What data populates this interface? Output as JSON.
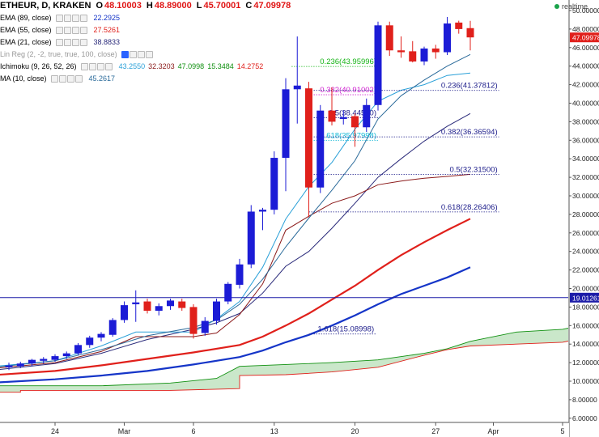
{
  "legend": {
    "title": "ETHEUR, D, KRAKEN",
    "ohlc": {
      "o_label": "O",
      "o": "48.10003",
      "h_label": "H",
      "h": "48.89000",
      "l_label": "L",
      "l": "45.70001",
      "c_label": "C",
      "c": "47.09978"
    },
    "indicators": [
      {
        "label": "EMA (89, close)",
        "value": "22.2925",
        "color": "#1535c8"
      },
      {
        "label": "EMA (55, close)",
        "value": "27.5261",
        "color": "#e0201b"
      },
      {
        "label": "EMA (21, close)",
        "value": "38.8833",
        "color": "#2a2a7a"
      },
      {
        "label": "Lin Reg (2, -2, true, true, 100, close)",
        "value": "",
        "color": "#888888"
      },
      {
        "label": "Ichimoku (9, 26, 52, 26)",
        "values": [
          "43.2550",
          "32.3203",
          "47.0998",
          "15.3484",
          "14.2752"
        ],
        "colors": [
          "#2aa0d8",
          "#8b1a1a",
          "#109010",
          "#109010",
          "#e0201b"
        ]
      },
      {
        "label": "MA (10, close)",
        "value": "45.2617",
        "color": "#2a6a9a"
      }
    ]
  },
  "realtime_label": "realtime",
  "chart_data": {
    "type": "candlestick",
    "symbol": "ETHEUR",
    "interval": "D",
    "exchange": "KRAKEN",
    "x_tick_labels": [
      {
        "index": 4,
        "label": "24"
      },
      {
        "index": 10,
        "label": "Mar"
      },
      {
        "index": 16,
        "label": "6"
      },
      {
        "index": 23,
        "label": "13"
      },
      {
        "index": 30,
        "label": "20"
      },
      {
        "index": 37,
        "label": "27"
      },
      {
        "index": 42,
        "label": "Apr"
      },
      {
        "index": 48,
        "label": "5"
      }
    ],
    "ylim": [
      6,
      51
    ],
    "y_ticks": [
      6,
      8,
      10,
      12,
      14,
      16,
      18,
      20,
      22,
      24,
      26,
      28,
      30,
      32,
      34,
      36,
      38,
      40,
      42,
      44,
      46,
      48,
      50
    ],
    "y_tick_labels": [
      "6.00000",
      "8.00000",
      "10.00000",
      "12.00000",
      "14.00000",
      "16.00000",
      "18.00000",
      "20.00000",
      "22.00000",
      "24.00000",
      "26.00000",
      "28.00000",
      "30.00000",
      "32.00000",
      "34.00000",
      "36.00000",
      "38.00000",
      "40.00000",
      "42.00000",
      "44.00000",
      "46.00000",
      "48.00000",
      "50.00000"
    ],
    "last_price": {
      "value": 47.09978,
      "label": "47.09978",
      "color": "#e0201b"
    },
    "horizontal_line": {
      "value": 19.0126,
      "label": "19.01261",
      "color": "#1c1ca8"
    },
    "up_color": "#1c1cd6",
    "down_color": "#e0201b",
    "candles": [
      {
        "i": 0,
        "o": 11.5,
        "h": 12.0,
        "l": 11.2,
        "c": 11.7
      },
      {
        "i": 1,
        "o": 11.6,
        "h": 12.1,
        "l": 11.4,
        "c": 11.9
      },
      {
        "i": 2,
        "o": 11.9,
        "h": 12.4,
        "l": 11.6,
        "c": 12.3
      },
      {
        "i": 3,
        "o": 12.2,
        "h": 12.6,
        "l": 11.9,
        "c": 12.4
      },
      {
        "i": 4,
        "o": 12.3,
        "h": 12.9,
        "l": 12.1,
        "c": 12.7
      },
      {
        "i": 5,
        "o": 12.7,
        "h": 13.2,
        "l": 12.4,
        "c": 13.0
      },
      {
        "i": 6,
        "o": 13.0,
        "h": 14.1,
        "l": 12.8,
        "c": 13.9
      },
      {
        "i": 7,
        "o": 13.9,
        "h": 14.9,
        "l": 13.6,
        "c": 14.7
      },
      {
        "i": 8,
        "o": 14.7,
        "h": 15.3,
        "l": 14.3,
        "c": 15.1
      },
      {
        "i": 9,
        "o": 15.0,
        "h": 16.8,
        "l": 14.8,
        "c": 16.6
      },
      {
        "i": 10,
        "o": 16.6,
        "h": 18.6,
        "l": 16.3,
        "c": 18.2
      },
      {
        "i": 11,
        "o": 18.3,
        "h": 19.8,
        "l": 16.4,
        "c": 18.5
      },
      {
        "i": 12,
        "o": 18.6,
        "h": 18.9,
        "l": 17.3,
        "c": 17.6
      },
      {
        "i": 13,
        "o": 17.6,
        "h": 18.4,
        "l": 17.1,
        "c": 18.1
      },
      {
        "i": 14,
        "o": 18.1,
        "h": 18.9,
        "l": 17.7,
        "c": 18.7
      },
      {
        "i": 15,
        "o": 18.6,
        "h": 18.9,
        "l": 17.6,
        "c": 17.9
      },
      {
        "i": 16,
        "o": 18.0,
        "h": 18.3,
        "l": 14.6,
        "c": 15.1
      },
      {
        "i": 17,
        "o": 15.2,
        "h": 16.9,
        "l": 14.9,
        "c": 16.5
      },
      {
        "i": 18,
        "o": 16.5,
        "h": 18.9,
        "l": 16.1,
        "c": 18.6
      },
      {
        "i": 19,
        "o": 18.6,
        "h": 20.7,
        "l": 18.3,
        "c": 20.5
      },
      {
        "i": 20,
        "o": 20.4,
        "h": 23.2,
        "l": 20.0,
        "c": 22.6
      },
      {
        "i": 21,
        "o": 22.6,
        "h": 29.0,
        "l": 22.2,
        "c": 28.3
      },
      {
        "i": 22,
        "o": 28.3,
        "h": 28.7,
        "l": 26.3,
        "c": 28.5
      },
      {
        "i": 23,
        "o": 28.5,
        "h": 34.8,
        "l": 28.0,
        "c": 34.1
      },
      {
        "i": 24,
        "o": 34.1,
        "h": 42.7,
        "l": 30.5,
        "c": 41.5
      },
      {
        "i": 25,
        "o": 41.5,
        "h": 47.2,
        "l": 37.8,
        "c": 41.9
      },
      {
        "i": 26,
        "o": 41.6,
        "h": 42.3,
        "l": 27.7,
        "c": 30.9
      },
      {
        "i": 27,
        "o": 30.9,
        "h": 39.8,
        "l": 30.3,
        "c": 39.2
      },
      {
        "i": 28,
        "o": 39.2,
        "h": 41.7,
        "l": 37.6,
        "c": 38.0
      },
      {
        "i": 29,
        "o": 38.3,
        "h": 39.2,
        "l": 37.7,
        "c": 38.5
      },
      {
        "i": 30,
        "o": 38.6,
        "h": 38.9,
        "l": 35.3,
        "c": 37.4
      },
      {
        "i": 31,
        "o": 37.4,
        "h": 40.5,
        "l": 36.9,
        "c": 39.8
      },
      {
        "i": 32,
        "o": 39.8,
        "h": 48.8,
        "l": 39.2,
        "c": 48.4
      },
      {
        "i": 33,
        "o": 48.4,
        "h": 48.8,
        "l": 45.1,
        "c": 45.7
      },
      {
        "i": 34,
        "o": 45.7,
        "h": 47.2,
        "l": 44.9,
        "c": 45.5
      },
      {
        "i": 35,
        "o": 45.6,
        "h": 46.7,
        "l": 44.4,
        "c": 44.5
      },
      {
        "i": 36,
        "o": 44.5,
        "h": 46.1,
        "l": 44.1,
        "c": 45.9
      },
      {
        "i": 37,
        "o": 45.9,
        "h": 46.3,
        "l": 44.8,
        "c": 45.5
      },
      {
        "i": 38,
        "o": 45.5,
        "h": 49.3,
        "l": 45.2,
        "c": 48.6
      },
      {
        "i": 39,
        "o": 48.7,
        "h": 48.9,
        "l": 47.5,
        "c": 48.0
      },
      {
        "i": 40,
        "o": 48.10003,
        "h": 48.89,
        "l": 45.70001,
        "c": 47.09978
      }
    ],
    "fib_levels": [
      {
        "ratio": "0.236",
        "value": "43.95996",
        "label": "0.236(43.95996)",
        "level": 43.96,
        "from": 24.5,
        "to": 32.0,
        "color": "#17b417"
      },
      {
        "ratio": "0.382",
        "value": "40.91002",
        "label": "0.382(40.91002)",
        "level": 40.91,
        "from": 26.0,
        "to": 32.0,
        "color": "#d126d1"
      },
      {
        "ratio": "0.5",
        "value": "38.44500",
        "label": "0.5(38.44500)",
        "level": 38.445,
        "from": 26.0,
        "to": 32.0,
        "color": "#1c1c8a"
      },
      {
        "ratio": "0.618",
        "value": "35.97998",
        "label": "0.618(35.97998)",
        "level": 35.98,
        "from": 26.0,
        "to": 32.0,
        "color": "#14b8d6"
      },
      {
        "ratio": "0.236",
        "value": "41.37812",
        "label": "0.236(41.37812)",
        "level": 41.378,
        "from": 26.0,
        "to": 42.5,
        "color": "#1c1c8a"
      },
      {
        "ratio": "0.382",
        "value": "36.36594",
        "label": "0.382(36.36594)",
        "level": 36.366,
        "from": 26.0,
        "to": 42.5,
        "color": "#1c1c8a"
      },
      {
        "ratio": "0.5",
        "value": "32.31500",
        "label": "0.5(32.31500)",
        "level": 32.315,
        "from": 26.0,
        "to": 42.5,
        "color": "#1c1c8a"
      },
      {
        "ratio": "0.618",
        "value": "28.26406",
        "label": "0.618(28.26406)",
        "level": 28.264,
        "from": 26.0,
        "to": 42.5,
        "color": "#1c1c8a"
      },
      {
        "ratio": "1.618",
        "value": "15.08998",
        "label": "1.618(15.08998)",
        "level": 15.09,
        "from": 26.0,
        "to": 31.8,
        "color": "#1c1c8a"
      }
    ],
    "lines": [
      {
        "name": "EMA (89, close)",
        "color": "#1535c8",
        "width": 2.2,
        "points": [
          [
            -2,
            9.8
          ],
          [
            4,
            10.2
          ],
          [
            8,
            10.6
          ],
          [
            12,
            11.1
          ],
          [
            16,
            11.8
          ],
          [
            20,
            12.6
          ],
          [
            22,
            13.3
          ],
          [
            24,
            14.2
          ],
          [
            26,
            15.0
          ],
          [
            28,
            16.0
          ],
          [
            30,
            17.1
          ],
          [
            32,
            18.3
          ],
          [
            34,
            19.4
          ],
          [
            36,
            20.3
          ],
          [
            38,
            21.2
          ],
          [
            40,
            22.29
          ]
        ]
      },
      {
        "name": "EMA (55, close)",
        "color": "#e0201b",
        "width": 2.2,
        "points": [
          [
            -2,
            10.6
          ],
          [
            4,
            11.1
          ],
          [
            8,
            11.7
          ],
          [
            12,
            12.4
          ],
          [
            16,
            13.1
          ],
          [
            20,
            13.9
          ],
          [
            22,
            14.8
          ],
          [
            24,
            16.0
          ],
          [
            26,
            17.3
          ],
          [
            28,
            18.8
          ],
          [
            30,
            20.3
          ],
          [
            32,
            22.0
          ],
          [
            34,
            23.6
          ],
          [
            36,
            25.0
          ],
          [
            38,
            26.3
          ],
          [
            40,
            27.53
          ]
        ]
      },
      {
        "name": "EMA (21, close)",
        "color": "#2a2a7a",
        "width": 1,
        "points": [
          [
            -2,
            11.1
          ],
          [
            4,
            11.9
          ],
          [
            8,
            13.0
          ],
          [
            12,
            14.5
          ],
          [
            16,
            15.6
          ],
          [
            18,
            16.3
          ],
          [
            20,
            17.3
          ],
          [
            22,
            19.5
          ],
          [
            24,
            22.4
          ],
          [
            26,
            24.0
          ],
          [
            28,
            26.5
          ],
          [
            30,
            29.2
          ],
          [
            32,
            32.0
          ],
          [
            34,
            34.0
          ],
          [
            36,
            35.9
          ],
          [
            38,
            37.5
          ],
          [
            40,
            38.88
          ]
        ]
      },
      {
        "name": "Ichimoku Base Line",
        "color": "#8b1a1a",
        "width": 1,
        "points": [
          [
            -2,
            11.3
          ],
          [
            4,
            12.0
          ],
          [
            8,
            13.2
          ],
          [
            11,
            14.8
          ],
          [
            16,
            14.8
          ],
          [
            18,
            15.2
          ],
          [
            20,
            17.2
          ],
          [
            22,
            20.5
          ],
          [
            24,
            26.3
          ],
          [
            26,
            27.8
          ],
          [
            28,
            29.2
          ],
          [
            30,
            30.0
          ],
          [
            32,
            31.2
          ],
          [
            34,
            31.6
          ],
          [
            36,
            31.9
          ],
          [
            38,
            32.1
          ],
          [
            40,
            32.32
          ]
        ]
      },
      {
        "name": "Ichimoku Conversion Line",
        "color": "#2aa0d8",
        "width": 1,
        "points": [
          [
            -2,
            11.5
          ],
          [
            4,
            12.2
          ],
          [
            8,
            13.8
          ],
          [
            11,
            15.3
          ],
          [
            16,
            15.3
          ],
          [
            18,
            16.7
          ],
          [
            20,
            18.6
          ],
          [
            22,
            22.3
          ],
          [
            24,
            27.5
          ],
          [
            26,
            31.0
          ],
          [
            28,
            33.6
          ],
          [
            30,
            37.2
          ],
          [
            32,
            40.2
          ],
          [
            34,
            41.4
          ],
          [
            36,
            42.0
          ],
          [
            38,
            43.0
          ],
          [
            40,
            43.26
          ]
        ]
      },
      {
        "name": "MA (10, close)",
        "color": "#2a6a9a",
        "width": 1,
        "points": [
          [
            -2,
            11.4
          ],
          [
            4,
            12.2
          ],
          [
            8,
            13.4
          ],
          [
            12,
            14.9
          ],
          [
            16,
            15.8
          ],
          [
            18,
            16.6
          ],
          [
            20,
            18.3
          ],
          [
            22,
            21.0
          ],
          [
            24,
            24.5
          ],
          [
            26,
            27.6
          ],
          [
            28,
            30.6
          ],
          [
            30,
            33.8
          ],
          [
            32,
            38.3
          ],
          [
            34,
            40.8
          ],
          [
            36,
            42.5
          ],
          [
            38,
            44.0
          ],
          [
            40,
            45.26
          ]
        ]
      }
    ],
    "cloud": {
      "span_a": {
        "color": "#109010",
        "points": [
          [
            -2,
            9.5
          ],
          [
            4,
            9.5
          ],
          [
            8,
            9.5
          ],
          [
            14,
            9.8
          ],
          [
            18,
            10.3
          ],
          [
            20,
            11.6
          ],
          [
            24,
            11.8
          ],
          [
            28,
            12.0
          ],
          [
            32,
            12.3
          ],
          [
            36,
            13.0
          ],
          [
            38,
            13.5
          ],
          [
            40,
            14.3
          ],
          [
            44,
            15.3
          ],
          [
            48,
            15.6
          ],
          [
            50,
            16.1
          ]
        ]
      },
      "span_b": {
        "color": "#e0201b",
        "points": [
          [
            -2,
            8.8
          ],
          [
            1,
            8.8
          ],
          [
            1,
            9.0
          ],
          [
            8,
            9.0
          ],
          [
            8,
            9.0
          ],
          [
            14,
            9.0
          ],
          [
            20,
            9.2
          ],
          [
            20,
            10.6
          ],
          [
            24,
            10.7
          ],
          [
            28,
            11.0
          ],
          [
            32,
            11.5
          ],
          [
            36,
            12.8
          ],
          [
            38,
            13.4
          ],
          [
            40,
            13.8
          ],
          [
            44,
            14.0
          ],
          [
            48,
            14.2
          ],
          [
            50,
            14.7
          ]
        ]
      },
      "fill": "#b8dfb8"
    }
  }
}
